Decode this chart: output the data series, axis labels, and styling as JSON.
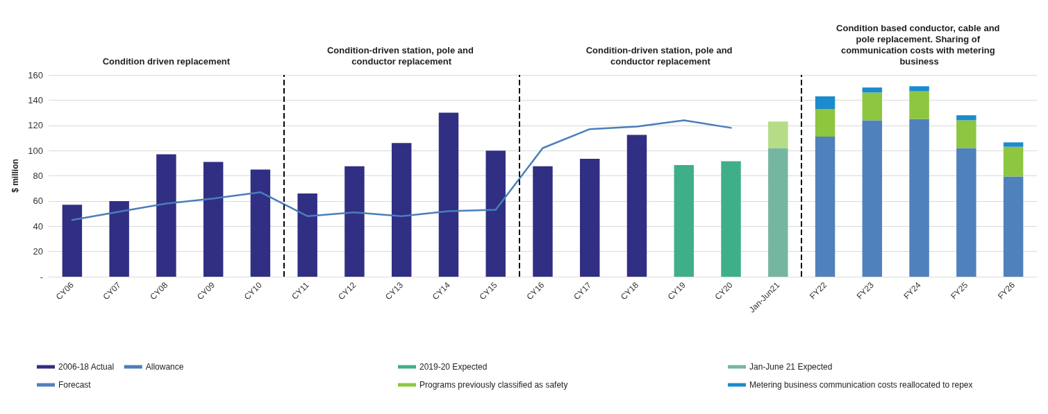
{
  "chart_data": {
    "type": "bar",
    "stacked": true,
    "ylabel": "$ million",
    "categories": [
      "CY06",
      "CY07",
      "CY08",
      "CY09",
      "CY10",
      "CY11",
      "CY12",
      "CY13",
      "CY14",
      "CY15",
      "CY16",
      "CY17",
      "CY18",
      "CY19",
      "CY20",
      "Jan-Jun21",
      "FY22",
      "FY23",
      "FY24",
      "FY25",
      "FY26"
    ],
    "series": [
      {
        "name": "2006-18 Actual",
        "color": "#302f83",
        "values": [
          57,
          60,
          97,
          91,
          85,
          66,
          87.5,
          106,
          130,
          100,
          87.5,
          93.5,
          112.5,
          null,
          null,
          null,
          null,
          null,
          null,
          null,
          null
        ]
      },
      {
        "name": "2019-20 Expected",
        "color": "#3faf8a",
        "values": [
          null,
          null,
          null,
          null,
          null,
          null,
          null,
          null,
          null,
          null,
          null,
          null,
          null,
          88.5,
          91.5,
          null,
          null,
          null,
          null,
          null,
          null
        ]
      },
      {
        "name": "Jan-June 21 Expected",
        "color": "#75b6a0",
        "values": [
          null,
          null,
          null,
          null,
          null,
          null,
          null,
          null,
          null,
          null,
          null,
          null,
          null,
          null,
          null,
          102,
          null,
          null,
          null,
          null,
          null
        ]
      },
      {
        "name": "Forecast",
        "color": "#4f81bd",
        "values": [
          null,
          null,
          null,
          null,
          null,
          null,
          null,
          null,
          null,
          null,
          null,
          null,
          null,
          null,
          null,
          null,
          111,
          124,
          125,
          102,
          79.5
        ]
      },
      {
        "name": "Programs previously classified as safety",
        "color": "#8dc63f",
        "colors": [
          null,
          null,
          null,
          null,
          null,
          null,
          null,
          null,
          null,
          null,
          null,
          null,
          null,
          null,
          null,
          "#b5dc87",
          "#8dc63f",
          "#8dc63f",
          "#8dc63f",
          "#8dc63f",
          "#8dc63f"
        ],
        "values": [
          null,
          null,
          null,
          null,
          null,
          null,
          null,
          null,
          null,
          null,
          null,
          null,
          null,
          null,
          null,
          21,
          22,
          22,
          22,
          22,
          23.5
        ]
      },
      {
        "name": "Metering business communication costs reallocated to repex",
        "color": "#1b8bce",
        "values": [
          null,
          null,
          null,
          null,
          null,
          null,
          null,
          null,
          null,
          null,
          null,
          null,
          null,
          null,
          null,
          null,
          10,
          4,
          4,
          4,
          3.5
        ]
      },
      {
        "name": "Allowance",
        "type": "line",
        "color": "#4a7ebb",
        "values": [
          45,
          51.5,
          58,
          62,
          67,
          48,
          51,
          48,
          52,
          53,
          102,
          117,
          119,
          124,
          118,
          null,
          null,
          null,
          null,
          null,
          null
        ]
      }
    ],
    "ylim": [
      0,
      160
    ],
    "yticks": [
      {
        "value": 0,
        "label": "-"
      },
      20,
      40,
      60,
      80,
      100,
      120,
      140,
      160
    ],
    "grid": "y",
    "legend": "bottom",
    "marker": "none",
    "annotations": [
      "Condition driven replacement",
      "Condition-driven station, pole and conductor replacement",
      "Condition-driven station, pole and conductor replacement",
      "Condition based conductor, cable and pole replacement. Sharing of communication costs with metering business"
    ]
  }
}
